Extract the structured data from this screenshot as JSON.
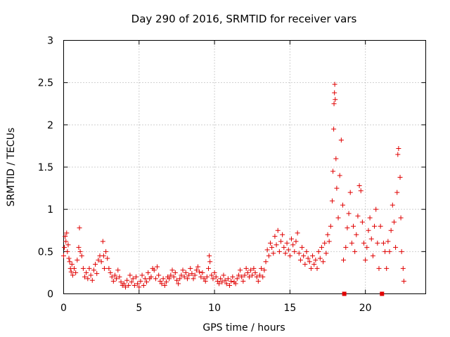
{
  "chart_data": {
    "type": "scatter",
    "title": "Day 290 of 2016, SRMTID for receiver vars",
    "xlabel": "GPS time / hours",
    "ylabel": "SRMTID / TECUs",
    "xlim": [
      0,
      24
    ],
    "ylim": [
      0,
      3
    ],
    "xticks": [
      0,
      5,
      10,
      15,
      20
    ],
    "yticks": [
      0,
      0.5,
      1,
      1.5,
      2,
      2.5,
      3
    ],
    "ytick_labels": [
      "0",
      "0.5",
      "1",
      "1.5",
      "2",
      "2.5",
      "3"
    ],
    "grid": true,
    "series": [
      {
        "name": "receiver vars",
        "marker": "plus",
        "color": "#e00000",
        "points": [
          [
            0.0,
            0.45
          ],
          [
            0.05,
            0.55
          ],
          [
            0.1,
            0.68
          ],
          [
            0.15,
            0.62
          ],
          [
            0.2,
            0.72
          ],
          [
            0.25,
            0.5
          ],
          [
            0.3,
            0.58
          ],
          [
            0.35,
            0.42
          ],
          [
            0.4,
            0.38
          ],
          [
            0.45,
            0.3
          ],
          [
            0.5,
            0.26
          ],
          [
            0.55,
            0.35
          ],
          [
            0.6,
            0.22
          ],
          [
            0.7,
            0.3
          ],
          [
            0.8,
            0.25
          ],
          [
            0.9,
            0.4
          ],
          [
            1.0,
            0.55
          ],
          [
            1.05,
            0.78
          ],
          [
            1.1,
            0.5
          ],
          [
            1.2,
            0.45
          ],
          [
            1.3,
            0.3
          ],
          [
            1.4,
            0.2
          ],
          [
            1.5,
            0.25
          ],
          [
            1.6,
            0.18
          ],
          [
            1.7,
            0.3
          ],
          [
            1.8,
            0.22
          ],
          [
            1.9,
            0.16
          ],
          [
            2.0,
            0.28
          ],
          [
            2.1,
            0.35
          ],
          [
            2.2,
            0.24
          ],
          [
            2.3,
            0.4
          ],
          [
            2.4,
            0.45
          ],
          [
            2.5,
            0.38
          ],
          [
            2.6,
            0.62
          ],
          [
            2.65,
            0.45
          ],
          [
            2.7,
            0.3
          ],
          [
            2.8,
            0.5
          ],
          [
            2.9,
            0.42
          ],
          [
            3.0,
            0.3
          ],
          [
            3.1,
            0.25
          ],
          [
            3.2,
            0.2
          ],
          [
            3.3,
            0.15
          ],
          [
            3.4,
            0.22
          ],
          [
            3.5,
            0.18
          ],
          [
            3.6,
            0.28
          ],
          [
            3.7,
            0.2
          ],
          [
            3.8,
            0.14
          ],
          [
            3.9,
            0.1
          ],
          [
            4.0,
            0.12
          ],
          [
            4.1,
            0.08
          ],
          [
            4.2,
            0.16
          ],
          [
            4.3,
            0.1
          ],
          [
            4.4,
            0.22
          ],
          [
            4.5,
            0.14
          ],
          [
            4.6,
            0.18
          ],
          [
            4.7,
            0.1
          ],
          [
            4.8,
            0.2
          ],
          [
            4.9,
            0.12
          ],
          [
            5.0,
            0.08
          ],
          [
            5.1,
            0.15
          ],
          [
            5.2,
            0.22
          ],
          [
            5.3,
            0.1
          ],
          [
            5.4,
            0.18
          ],
          [
            5.5,
            0.14
          ],
          [
            5.6,
            0.25
          ],
          [
            5.7,
            0.18
          ],
          [
            5.8,
            0.2
          ],
          [
            5.9,
            0.3
          ],
          [
            6.0,
            0.28
          ],
          [
            6.1,
            0.18
          ],
          [
            6.2,
            0.32
          ],
          [
            6.3,
            0.22
          ],
          [
            6.4,
            0.15
          ],
          [
            6.5,
            0.12
          ],
          [
            6.6,
            0.18
          ],
          [
            6.7,
            0.1
          ],
          [
            6.8,
            0.14
          ],
          [
            6.9,
            0.2
          ],
          [
            7.0,
            0.18
          ],
          [
            7.1,
            0.22
          ],
          [
            7.2,
            0.28
          ],
          [
            7.3,
            0.2
          ],
          [
            7.4,
            0.25
          ],
          [
            7.5,
            0.16
          ],
          [
            7.6,
            0.12
          ],
          [
            7.7,
            0.18
          ],
          [
            7.8,
            0.22
          ],
          [
            7.9,
            0.28
          ],
          [
            8.0,
            0.2
          ],
          [
            8.1,
            0.25
          ],
          [
            8.2,
            0.18
          ],
          [
            8.3,
            0.22
          ],
          [
            8.4,
            0.3
          ],
          [
            8.5,
            0.24
          ],
          [
            8.6,
            0.18
          ],
          [
            8.7,
            0.22
          ],
          [
            8.8,
            0.28
          ],
          [
            8.9,
            0.32
          ],
          [
            9.0,
            0.26
          ],
          [
            9.1,
            0.2
          ],
          [
            9.2,
            0.25
          ],
          [
            9.3,
            0.18
          ],
          [
            9.4,
            0.15
          ],
          [
            9.5,
            0.2
          ],
          [
            9.6,
            0.3
          ],
          [
            9.65,
            0.45
          ],
          [
            9.7,
            0.38
          ],
          [
            9.8,
            0.22
          ],
          [
            9.9,
            0.18
          ],
          [
            10.0,
            0.25
          ],
          [
            10.1,
            0.2
          ],
          [
            10.2,
            0.15
          ],
          [
            10.3,
            0.12
          ],
          [
            10.4,
            0.18
          ],
          [
            10.5,
            0.14
          ],
          [
            10.6,
            0.22
          ],
          [
            10.7,
            0.16
          ],
          [
            10.8,
            0.12
          ],
          [
            10.9,
            0.18
          ],
          [
            11.0,
            0.1
          ],
          [
            11.1,
            0.15
          ],
          [
            11.2,
            0.2
          ],
          [
            11.3,
            0.14
          ],
          [
            11.4,
            0.12
          ],
          [
            11.5,
            0.18
          ],
          [
            11.6,
            0.22
          ],
          [
            11.7,
            0.28
          ],
          [
            11.8,
            0.2
          ],
          [
            11.9,
            0.15
          ],
          [
            12.0,
            0.22
          ],
          [
            12.1,
            0.3
          ],
          [
            12.2,
            0.25
          ],
          [
            12.3,
            0.2
          ],
          [
            12.4,
            0.28
          ],
          [
            12.5,
            0.22
          ],
          [
            12.6,
            0.3
          ],
          [
            12.7,
            0.25
          ],
          [
            12.8,
            0.2
          ],
          [
            12.9,
            0.15
          ],
          [
            13.0,
            0.22
          ],
          [
            13.1,
            0.3
          ],
          [
            13.2,
            0.2
          ],
          [
            13.3,
            0.28
          ],
          [
            13.4,
            0.38
          ],
          [
            13.5,
            0.52
          ],
          [
            13.6,
            0.45
          ],
          [
            13.7,
            0.6
          ],
          [
            13.8,
            0.55
          ],
          [
            13.9,
            0.48
          ],
          [
            14.0,
            0.68
          ],
          [
            14.1,
            0.58
          ],
          [
            14.2,
            0.75
          ],
          [
            14.3,
            0.5
          ],
          [
            14.4,
            0.62
          ],
          [
            14.5,
            0.7
          ],
          [
            14.6,
            0.55
          ],
          [
            14.7,
            0.48
          ],
          [
            14.8,
            0.6
          ],
          [
            14.9,
            0.52
          ],
          [
            15.0,
            0.45
          ],
          [
            15.1,
            0.65
          ],
          [
            15.2,
            0.58
          ],
          [
            15.3,
            0.5
          ],
          [
            15.4,
            0.62
          ],
          [
            15.5,
            0.72
          ],
          [
            15.6,
            0.48
          ],
          [
            15.7,
            0.4
          ],
          [
            15.8,
            0.55
          ],
          [
            15.9,
            0.45
          ],
          [
            16.0,
            0.35
          ],
          [
            16.1,
            0.5
          ],
          [
            16.2,
            0.42
          ],
          [
            16.3,
            0.38
          ],
          [
            16.4,
            0.3
          ],
          [
            16.5,
            0.45
          ],
          [
            16.6,
            0.35
          ],
          [
            16.7,
            0.4
          ],
          [
            16.8,
            0.3
          ],
          [
            16.9,
            0.5
          ],
          [
            17.0,
            0.42
          ],
          [
            17.1,
            0.55
          ],
          [
            17.2,
            0.38
          ],
          [
            17.3,
            0.6
          ],
          [
            17.4,
            0.48
          ],
          [
            17.5,
            0.7
          ],
          [
            17.6,
            0.62
          ],
          [
            17.7,
            0.8
          ],
          [
            17.8,
            1.1
          ],
          [
            17.85,
            1.45
          ],
          [
            17.9,
            1.95
          ],
          [
            17.92,
            2.25
          ],
          [
            17.95,
            2.38
          ],
          [
            17.97,
            2.48
          ],
          [
            18.0,
            2.3
          ],
          [
            18.05,
            1.6
          ],
          [
            18.1,
            1.25
          ],
          [
            18.2,
            0.9
          ],
          [
            18.3,
            1.4
          ],
          [
            18.4,
            1.82
          ],
          [
            18.5,
            1.05
          ],
          [
            18.55,
            0.4
          ],
          [
            18.6,
            0.0
          ],
          [
            18.7,
            0.55
          ],
          [
            18.8,
            0.78
          ],
          [
            18.9,
            0.95
          ],
          [
            19.0,
            1.2
          ],
          [
            19.1,
            0.6
          ],
          [
            19.2,
            0.8
          ],
          [
            19.3,
            0.5
          ],
          [
            19.4,
            0.7
          ],
          [
            19.5,
            0.92
          ],
          [
            19.6,
            1.28
          ],
          [
            19.7,
            1.22
          ],
          [
            19.8,
            0.85
          ],
          [
            19.9,
            0.6
          ],
          [
            20.0,
            0.4
          ],
          [
            20.1,
            0.55
          ],
          [
            20.2,
            0.75
          ],
          [
            20.3,
            0.9
          ],
          [
            20.4,
            0.65
          ],
          [
            20.5,
            0.45
          ],
          [
            20.6,
            0.8
          ],
          [
            20.7,
            1.0
          ],
          [
            20.8,
            0.6
          ],
          [
            20.9,
            0.3
          ],
          [
            21.0,
            0.8
          ],
          [
            21.1,
            0.0
          ],
          [
            21.2,
            0.6
          ],
          [
            21.3,
            0.5
          ],
          [
            21.4,
            0.3
          ],
          [
            21.5,
            0.62
          ],
          [
            21.6,
            0.5
          ],
          [
            21.7,
            0.75
          ],
          [
            21.8,
            1.05
          ],
          [
            21.9,
            0.85
          ],
          [
            22.0,
            0.55
          ],
          [
            22.1,
            1.2
          ],
          [
            22.15,
            1.65
          ],
          [
            22.2,
            1.72
          ],
          [
            22.3,
            1.38
          ],
          [
            22.35,
            0.9
          ],
          [
            22.4,
            0.5
          ],
          [
            22.5,
            0.3
          ],
          [
            22.55,
            0.15
          ]
        ]
      }
    ]
  }
}
